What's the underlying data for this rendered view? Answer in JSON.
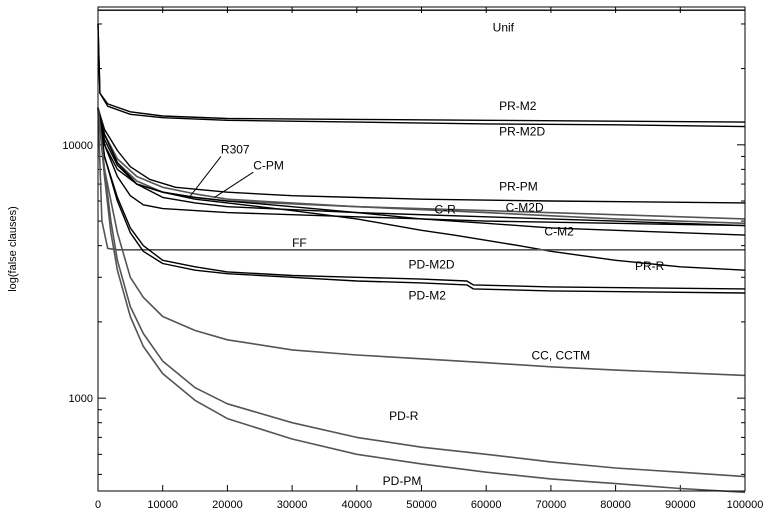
{
  "chart_data": {
    "type": "line",
    "title": "",
    "xlabel": "",
    "ylabel": "log(false clauses)",
    "y_scale": "log",
    "xlim": [
      0,
      100000
    ],
    "ylim": [
      430,
      35000
    ],
    "grid": false,
    "legend": "none (series labelled inline)",
    "x_ticks": [
      0,
      10000,
      20000,
      30000,
      40000,
      50000,
      60000,
      70000,
      80000,
      90000,
      100000
    ],
    "x_tick_labels": [
      "0",
      "10000",
      "20000",
      "30000",
      "40000",
      "50000",
      "60000",
      "70000",
      "80000",
      "90000",
      "100000"
    ],
    "y_ticks": [
      1000,
      10000
    ],
    "y_tick_labels": [
      "1000",
      "10000"
    ],
    "colors": {
      "black_series": "#000000",
      "gray_series": "#555555",
      "axis": "#000000"
    },
    "series": [
      {
        "name": "Unif",
        "color": "black",
        "x": [
          0,
          100000
        ],
        "y": [
          34000,
          34000
        ]
      },
      {
        "name": "PR-M2",
        "color": "black",
        "x": [
          0,
          300,
          1500,
          5000,
          10000,
          20000,
          40000,
          60000,
          80000,
          100000
        ],
        "y": [
          30000,
          16000,
          14500,
          13500,
          13000,
          12700,
          12600,
          12500,
          12400,
          12300
        ]
      },
      {
        "name": "PR-M2D",
        "color": "black",
        "x": [
          0,
          300,
          1500,
          5000,
          10000,
          20000,
          40000,
          60000,
          80000,
          100000
        ],
        "y": [
          30000,
          16000,
          14200,
          13200,
          12800,
          12500,
          12300,
          12100,
          12000,
          11800
        ]
      },
      {
        "name": "PR-PM",
        "color": "black",
        "x": [
          0,
          1000,
          3000,
          5000,
          8000,
          12000,
          20000,
          30000,
          50000,
          70000,
          100000
        ],
        "y": [
          14000,
          11500,
          9500,
          8200,
          7300,
          6800,
          6500,
          6300,
          6100,
          6000,
          5900
        ]
      },
      {
        "name": "R307",
        "color": "gray",
        "x": [
          0,
          1000,
          3000,
          6000,
          10000,
          15000,
          20000,
          40000,
          60000,
          80000,
          100000
        ],
        "y": [
          14000,
          11000,
          8500,
          7200,
          6500,
          6200,
          6000,
          5700,
          5500,
          5300,
          5100
        ]
      },
      {
        "name": "C-PM",
        "color": "gray",
        "x": [
          0,
          1000,
          3000,
          6000,
          10000,
          15000,
          20000,
          40000,
          60000,
          80000,
          100000
        ],
        "y": [
          14000,
          11000,
          8800,
          7500,
          6800,
          6400,
          6100,
          5700,
          5400,
          5100,
          4900
        ]
      },
      {
        "name": "C-M2D",
        "color": "black",
        "x": [
          0,
          1000,
          3000,
          6000,
          10000,
          15000,
          20000,
          40000,
          60000,
          80000,
          100000
        ],
        "y": [
          14000,
          11000,
          8500,
          7000,
          6200,
          5900,
          5700,
          5400,
          5200,
          5000,
          4800
        ]
      },
      {
        "name": "C-R",
        "color": "black",
        "x": [
          0,
          1000,
          3000,
          5000,
          7000,
          10000,
          15000,
          20000,
          40000,
          60000,
          80000,
          100000
        ],
        "y": [
          14000,
          10000,
          7500,
          6300,
          5800,
          5600,
          5500,
          5400,
          5200,
          5000,
          4900,
          4800
        ]
      },
      {
        "name": "C-M2",
        "color": "black",
        "x": [
          0,
          1000,
          3000,
          6000,
          10000,
          15000,
          20000,
          30000,
          40000,
          50000,
          60000,
          70000,
          80000,
          100000
        ],
        "y": [
          14000,
          10500,
          8300,
          7000,
          6500,
          6200,
          6000,
          5700,
          5400,
          5100,
          4900,
          4700,
          4600,
          4400
        ]
      },
      {
        "name": "PR-R",
        "color": "black",
        "x": [
          0,
          1000,
          3000,
          6000,
          10000,
          15000,
          20000,
          30000,
          40000,
          50000,
          55000,
          60000,
          65000,
          70000,
          80000,
          90000,
          100000
        ],
        "y": [
          14000,
          10000,
          8000,
          7000,
          6500,
          6100,
          5900,
          5500,
          5100,
          4600,
          4400,
          4200,
          4000,
          3800,
          3500,
          3300,
          3200
        ]
      },
      {
        "name": "FF",
        "color": "gray",
        "x": [
          0,
          600,
          1500,
          3000,
          100000
        ],
        "y": [
          14000,
          5000,
          3900,
          3850,
          3850
        ]
      },
      {
        "name": "PD-M2D",
        "color": "black",
        "x": [
          0,
          1000,
          3000,
          5000,
          7000,
          10000,
          15000,
          20000,
          30000,
          40000,
          50000,
          57000,
          58000,
          70000,
          100000
        ],
        "y": [
          14000,
          9000,
          6200,
          4700,
          4000,
          3500,
          3300,
          3150,
          3050,
          3000,
          2950,
          2900,
          2800,
          2750,
          2700
        ]
      },
      {
        "name": "PD-M2",
        "color": "black",
        "x": [
          0,
          1000,
          3000,
          5000,
          7000,
          10000,
          15000,
          20000,
          30000,
          40000,
          50000,
          57000,
          58000,
          70000,
          100000
        ],
        "y": [
          14000,
          9000,
          6000,
          4500,
          3800,
          3400,
          3200,
          3100,
          3000,
          2900,
          2850,
          2800,
          2700,
          2650,
          2600
        ]
      },
      {
        "name": "CC, CCTM",
        "color": "gray",
        "x": [
          0,
          1000,
          3000,
          5000,
          7000,
          10000,
          15000,
          20000,
          30000,
          40000,
          50000,
          60000,
          70000,
          80000,
          90000,
          100000
        ],
        "y": [
          14000,
          8000,
          4500,
          3000,
          2500,
          2100,
          1850,
          1700,
          1550,
          1480,
          1430,
          1380,
          1330,
          1290,
          1260,
          1230
        ]
      },
      {
        "name": "PD-R",
        "color": "gray",
        "x": [
          0,
          1000,
          2000,
          3000,
          5000,
          7000,
          10000,
          15000,
          20000,
          30000,
          40000,
          50000,
          60000,
          70000,
          80000,
          90000,
          100000
        ],
        "y": [
          14000,
          8000,
          5000,
          3500,
          2300,
          1800,
          1400,
          1100,
          950,
          800,
          700,
          640,
          600,
          560,
          530,
          510,
          490
        ]
      },
      {
        "name": "PD-PM",
        "color": "gray",
        "x": [
          0,
          1000,
          2000,
          3000,
          5000,
          7000,
          10000,
          15000,
          20000,
          30000,
          40000,
          50000,
          60000,
          70000,
          80000,
          90000,
          100000
        ],
        "y": [
          14000,
          7500,
          4500,
          3200,
          2100,
          1600,
          1250,
          980,
          830,
          690,
          600,
          550,
          510,
          480,
          460,
          440,
          425
        ]
      }
    ],
    "annotations": [
      {
        "text": "Unif",
        "x": 61000,
        "y": 28000
      },
      {
        "text": "PR-M2",
        "x": 62000,
        "y": 13700
      },
      {
        "text": "PR-M2D",
        "x": 62000,
        "y": 10900
      },
      {
        "text": "R307",
        "x": 19000,
        "y": 9250
      },
      {
        "text": "C-PM",
        "x": 24000,
        "y": 8000
      },
      {
        "text": "PR-PM",
        "x": 62000,
        "y": 6600
      },
      {
        "text": "C-M2D",
        "x": 63000,
        "y": 5450
      },
      {
        "text": "C-R",
        "x": 52000,
        "y": 5350
      },
      {
        "text": "C-M2",
        "x": 69000,
        "y": 4380
      },
      {
        "text": "FF",
        "x": 30000,
        "y": 3950
      },
      {
        "text": "PD-M2D",
        "x": 48000,
        "y": 3250
      },
      {
        "text": "PR-R",
        "x": 83000,
        "y": 3200
      },
      {
        "text": "PD-M2",
        "x": 48000,
        "y": 2450
      },
      {
        "text": "CC, CCTM",
        "x": 67000,
        "y": 1420
      },
      {
        "text": "PD-R",
        "x": 45000,
        "y": 820
      },
      {
        "text": "PD-PM",
        "x": 44000,
        "y": 455
      }
    ]
  }
}
